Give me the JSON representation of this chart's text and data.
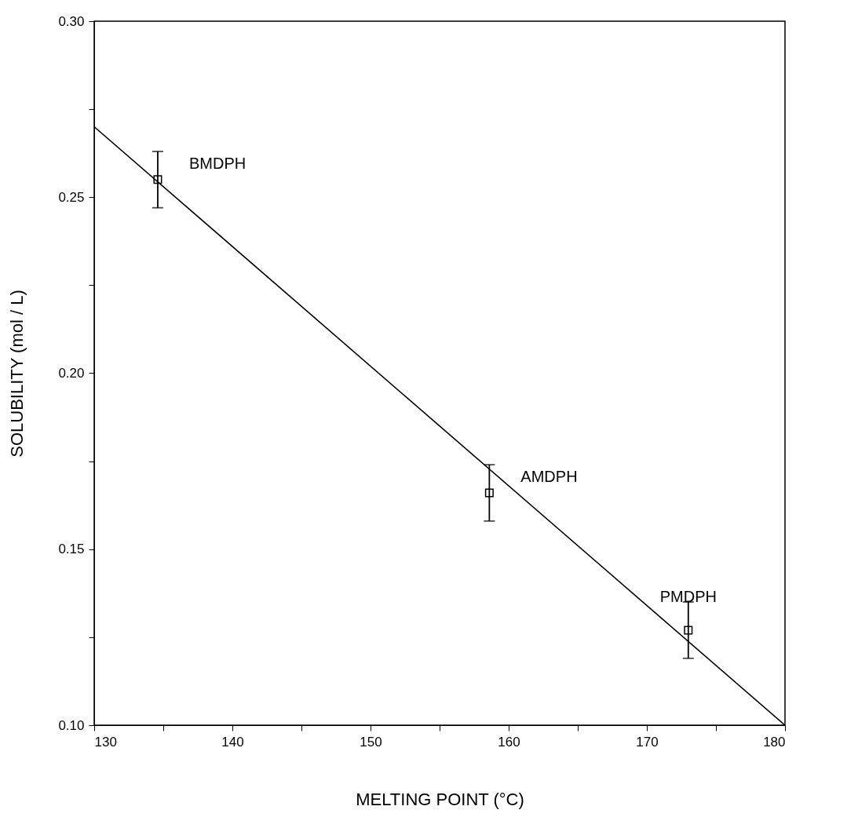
{
  "chart_data": {
    "type": "scatter",
    "xlabel": "MELTING POINT (°C)",
    "ylabel": "SOLUBILITY (mol / L)",
    "xlim": [
      130,
      180
    ],
    "ylim": [
      0.1,
      0.3
    ],
    "xticks": [
      130,
      {
        "value": 135,
        "label": null
      },
      140,
      {
        "value": 145,
        "label": null
      },
      150,
      {
        "value": 155,
        "label": null
      },
      160,
      {
        "value": 165,
        "label": null
      },
      170,
      {
        "value": 175,
        "label": null
      },
      180
    ],
    "yticks": [
      {
        "value": 0.1,
        "label": "0.10"
      },
      {
        "value": 0.125,
        "label": null
      },
      0.15,
      {
        "value": 0.175,
        "label": null
      },
      {
        "value": 0.2,
        "label": "0.20"
      },
      {
        "value": 0.225,
        "label": null
      },
      0.25,
      {
        "value": 0.275,
        "label": null
      },
      {
        "value": 0.3,
        "label": "0.30"
      }
    ],
    "grid": false,
    "series": [
      {
        "type": "line",
        "color": "#000000",
        "x": [
          130,
          180
        ],
        "values": [
          0.27,
          0.1
        ]
      },
      {
        "color": "#000000",
        "marker": "square",
        "x": [
          134.6,
          158.6,
          173.0
        ],
        "values": [
          0.255,
          0.166,
          0.127
        ],
        "errors": [
          0.008,
          0.008,
          0.008
        ]
      }
    ],
    "annotations": [
      {
        "text": "BMDPH",
        "x": 134.6,
        "y": 0.255
      },
      {
        "text": "AMDPH",
        "x": 158.6,
        "y": 0.166
      },
      {
        "text": "PMDPH",
        "x": 173.0,
        "y": 0.127
      }
    ]
  }
}
